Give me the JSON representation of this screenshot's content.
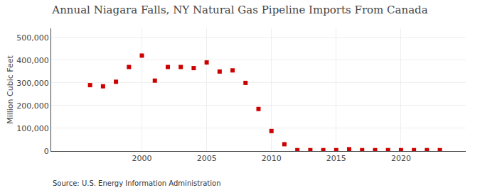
{
  "chart_data": {
    "type": "scatter",
    "title": "Annual Niagara Falls, NY Natural Gas Pipeline Imports From Canada",
    "y_label": "Million Cubic Feet",
    "annotations": [
      "Source: U.S. Energy Information Administration"
    ],
    "x": [
      1996,
      1997,
      1998,
      1999,
      2000,
      2001,
      2002,
      2003,
      2004,
      2005,
      2006,
      2007,
      2008,
      2009,
      2010,
      2011,
      2012,
      2013,
      2014,
      2015,
      2016,
      2017,
      2018,
      2019,
      2020,
      2021,
      2022,
      2023
    ],
    "values": [
      290000,
      285000,
      305000,
      370000,
      420000,
      310000,
      370000,
      370000,
      365000,
      390000,
      350000,
      355000,
      300000,
      185000,
      88000,
      30000,
      4000,
      4000,
      4000,
      4000,
      8000,
      4000,
      4000,
      4000,
      4000,
      4000,
      4000,
      4000
    ],
    "color": "#cc0000",
    "marker": "square",
    "xlim": [
      1993,
      2025
    ],
    "xticks": [
      2000,
      2005,
      2010,
      2015,
      2020
    ],
    "ylim": [
      0,
      540000
    ],
    "yticks": [
      0,
      {
        "value": 100000,
        "label": "100,000"
      },
      {
        "value": 200000,
        "label": "200,000"
      },
      {
        "value": 300000,
        "label": "300,000"
      },
      {
        "value": 400000,
        "label": "400,000"
      },
      {
        "value": 500000,
        "label": "500,000"
      }
    ],
    "grid": true
  }
}
